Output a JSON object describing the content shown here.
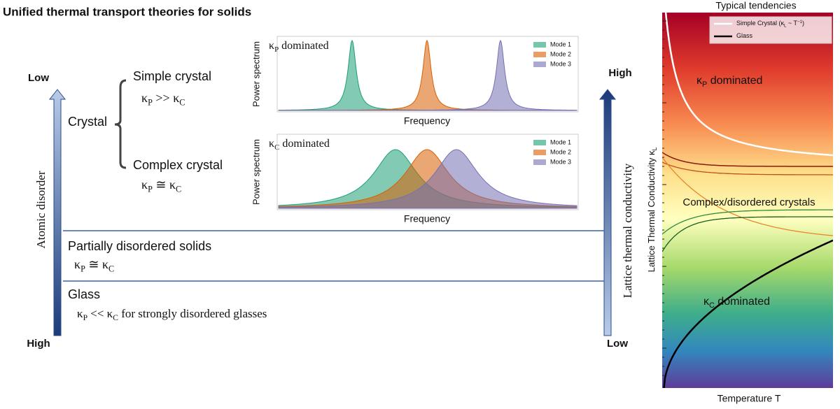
{
  "title": "Unified thermal transport theories for solids",
  "disorder_axis": {
    "label": "Atomic disorder",
    "top": "Low",
    "bottom": "High"
  },
  "conductivity_axis": {
    "label": "Lattice thermal conductivity",
    "top": "High",
    "bottom": "Low"
  },
  "crystal": {
    "label": "Crystal",
    "simple": {
      "label": "Simple crystal",
      "relation": [
        "κ",
        "P",
        " >> κ",
        "C"
      ]
    },
    "complex": {
      "label": "Complex crystal",
      "relation": [
        "κ",
        "P",
        " ≅ κ",
        "C"
      ]
    }
  },
  "partial": {
    "label": "Partially disordered solids",
    "relation": [
      "κ",
      "P",
      " ≅ κ",
      "C"
    ]
  },
  "glass": {
    "label": "Glass",
    "relation": [
      "κ",
      "P",
      " << κ",
      "C",
      " for strongly disordered glasses"
    ]
  },
  "spectra": [
    {
      "title": [
        "κ",
        "P",
        " dominated"
      ],
      "ylabel": "Power spectrum",
      "xlabel": "Frequency",
      "legend": [
        "Mode 1",
        "Mode 2",
        "Mode 3"
      ]
    },
    {
      "title": [
        "κ",
        "C",
        " dominated"
      ],
      "ylabel": "Power spectrum",
      "xlabel": "Frequency",
      "legend": [
        "Mode 1",
        "Mode 2",
        "Mode 3"
      ]
    }
  ],
  "tendencies": {
    "title": "Typical tendencies",
    "legend": [
      [
        "Simple Crystal (κ",
        "L",
        " ~ T",
        "−1",
        ")"
      ],
      [
        "Glass"
      ]
    ],
    "kp_label": [
      "κ",
      "P",
      " dominated"
    ],
    "mid_label": "Complex/disordered crystals",
    "kc_label": [
      "κ",
      "C",
      " dominated"
    ],
    "ylabel": [
      "Lattice Thermal Conductivity κ",
      "L"
    ],
    "xlabel": "Temperature T"
  }
}
